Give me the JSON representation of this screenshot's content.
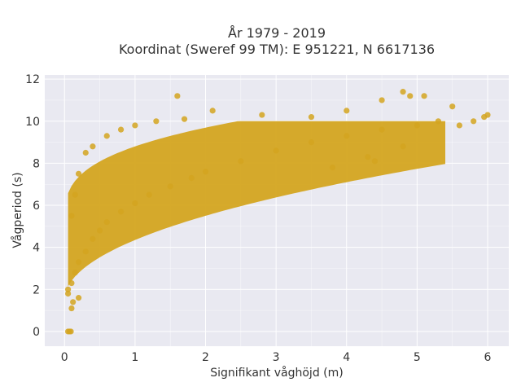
{
  "chart_data": {
    "type": "scatter",
    "title": "År 1979 - 2019",
    "subtitle": "Koordinat (Sweref 99 TM): E 951221, N 6617136",
    "xlabel": "Signifikant våghöjd (m)",
    "ylabel": "Vågperiod (s)",
    "xlim": [
      -0.28,
      6.3
    ],
    "ylim": [
      -0.7,
      12.2
    ],
    "x_ticks": [
      0,
      1,
      2,
      3,
      4,
      5,
      6
    ],
    "y_ticks": [
      0,
      2,
      4,
      6,
      8,
      10,
      12
    ],
    "grid": true,
    "legend": "none",
    "marker_color": "#D4A520",
    "background_color": "#E9E9F1",
    "grid_color": "#FFFFFF",
    "series": [
      {
        "points": [
          [
            0.05,
            0.0
          ],
          [
            0.07,
            0.0
          ],
          [
            0.09,
            0.0
          ],
          [
            0.05,
            1.8
          ],
          [
            0.1,
            2.3
          ],
          [
            0.15,
            2.8
          ],
          [
            0.12,
            1.4
          ],
          [
            0.2,
            3.3
          ],
          [
            0.3,
            3.8
          ],
          [
            0.4,
            4.4
          ],
          [
            0.5,
            4.8
          ],
          [
            0.6,
            5.2
          ],
          [
            0.8,
            5.7
          ],
          [
            1.0,
            6.1
          ],
          [
            1.2,
            6.5
          ],
          [
            1.5,
            6.9
          ],
          [
            1.8,
            7.3
          ],
          [
            2.0,
            7.6
          ],
          [
            2.5,
            8.1
          ],
          [
            3.0,
            8.6
          ],
          [
            3.5,
            9.0
          ],
          [
            4.0,
            9.3
          ],
          [
            4.5,
            9.6
          ],
          [
            5.0,
            9.8
          ],
          [
            5.3,
            10.0
          ],
          [
            0.1,
            5.5
          ],
          [
            0.15,
            6.5
          ],
          [
            0.2,
            7.5
          ],
          [
            0.3,
            8.5
          ],
          [
            0.4,
            8.8
          ],
          [
            0.6,
            9.3
          ],
          [
            0.8,
            9.6
          ],
          [
            1.0,
            9.8
          ],
          [
            1.3,
            10.0
          ],
          [
            1.7,
            10.1
          ],
          [
            1.6,
            11.2
          ],
          [
            2.1,
            10.5
          ],
          [
            2.8,
            10.3
          ],
          [
            3.5,
            10.2
          ],
          [
            4.0,
            10.5
          ],
          [
            4.5,
            11.0
          ],
          [
            4.8,
            11.4
          ],
          [
            4.9,
            11.2
          ],
          [
            5.1,
            11.2
          ],
          [
            5.5,
            10.7
          ],
          [
            5.6,
            9.8
          ],
          [
            5.8,
            10.0
          ],
          [
            6.0,
            10.3
          ],
          [
            5.95,
            10.2
          ],
          [
            4.3,
            8.3
          ],
          [
            4.4,
            8.1
          ],
          [
            4.8,
            8.8
          ],
          [
            3.8,
            7.8
          ],
          [
            0.1,
            1.1
          ],
          [
            0.2,
            1.6
          ],
          [
            0.05,
            2.0
          ]
        ]
      }
    ]
  }
}
